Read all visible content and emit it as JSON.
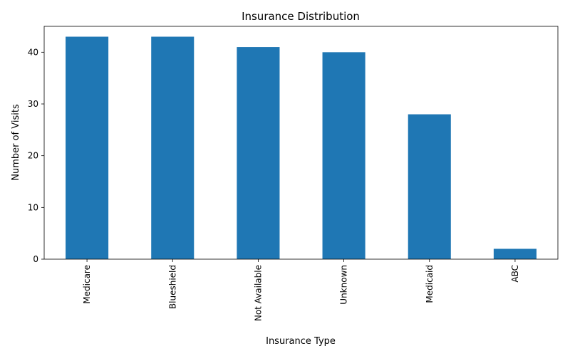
{
  "chart_data": {
    "type": "bar",
    "title": "Insurance Distribution",
    "xlabel": "Insurance Type",
    "ylabel": "Number of Visits",
    "categories": [
      "Medicare",
      "Blueshield",
      "Not Available",
      "Unknown",
      "Medicaid",
      "ABC"
    ],
    "values": [
      43,
      43,
      41,
      40,
      28,
      2
    ],
    "ylim": [
      0,
      45
    ],
    "yticks": [
      0,
      10,
      20,
      30,
      40
    ],
    "grid": false,
    "bar_color": "#1f77b4"
  }
}
